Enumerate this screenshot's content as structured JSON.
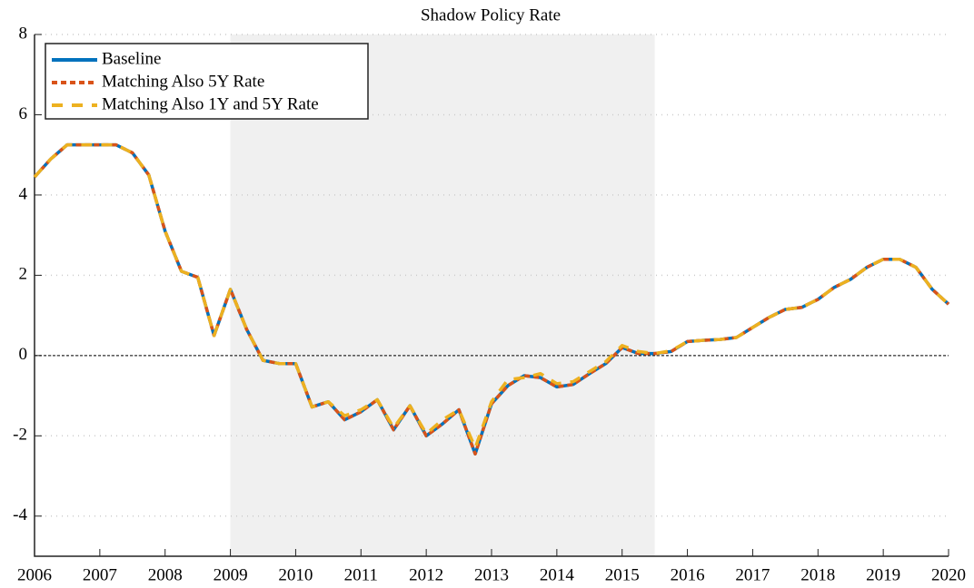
{
  "chart_data": {
    "type": "line",
    "title": "Shadow Policy Rate",
    "x": [
      2006,
      2006.25,
      2006.5,
      2006.75,
      2007,
      2007.25,
      2007.5,
      2007.75,
      2008,
      2008.25,
      2008.5,
      2008.75,
      2009,
      2009.25,
      2009.5,
      2009.75,
      2010,
      2010.25,
      2010.5,
      2010.75,
      2011,
      2011.25,
      2011.5,
      2011.75,
      2012,
      2012.25,
      2012.5,
      2012.75,
      2013,
      2013.25,
      2013.5,
      2013.75,
      2014,
      2014.25,
      2014.5,
      2014.75,
      2015,
      2015.25,
      2015.5,
      2015.75,
      2016,
      2016.25,
      2016.5,
      2016.75,
      2017,
      2017.25,
      2017.5,
      2017.75,
      2018,
      2018.25,
      2018.5,
      2018.75,
      2019,
      2019.25,
      2019.5,
      2019.75,
      2020
    ],
    "series": [
      {
        "name": "Baseline",
        "color": "#0072bd",
        "dash": "solid",
        "values": [
          4.45,
          4.9,
          5.25,
          5.25,
          5.25,
          5.25,
          5.05,
          4.5,
          3.1,
          2.1,
          1.95,
          0.5,
          1.65,
          0.65,
          -0.12,
          -0.2,
          -0.2,
          -1.28,
          -1.15,
          -1.6,
          -1.4,
          -1.1,
          -1.85,
          -1.25,
          -2.0,
          -1.7,
          -1.35,
          -2.45,
          -1.2,
          -0.75,
          -0.5,
          -0.55,
          -0.78,
          -0.72,
          -0.45,
          -0.2,
          0.2,
          0.05,
          0.05,
          0.1,
          0.35,
          0.38,
          0.4,
          0.45,
          0.7,
          0.95,
          1.15,
          1.2,
          1.4,
          1.7,
          1.9,
          2.2,
          2.4,
          2.4,
          2.2,
          1.65,
          1.28
        ]
      },
      {
        "name": "Matching Also 5Y Rate",
        "color": "#d95319",
        "dash": "short",
        "values": [
          4.45,
          4.9,
          5.25,
          5.25,
          5.25,
          5.25,
          5.05,
          4.5,
          3.1,
          2.1,
          1.95,
          0.5,
          1.65,
          0.65,
          -0.12,
          -0.2,
          -0.2,
          -1.28,
          -1.15,
          -1.6,
          -1.4,
          -1.1,
          -1.85,
          -1.25,
          -2.0,
          -1.7,
          -1.35,
          -2.45,
          -1.2,
          -0.75,
          -0.5,
          -0.55,
          -0.78,
          -0.72,
          -0.45,
          -0.2,
          0.2,
          0.05,
          0.05,
          0.1,
          0.35,
          0.38,
          0.4,
          0.45,
          0.7,
          0.95,
          1.15,
          1.2,
          1.4,
          1.7,
          1.9,
          2.2,
          2.4,
          2.4,
          2.2,
          1.65,
          1.28
        ]
      },
      {
        "name": "Matching Also 1Y and 5Y Rate",
        "color": "#edb120",
        "dash": "long",
        "values": [
          4.45,
          4.9,
          5.25,
          5.25,
          5.25,
          5.25,
          5.05,
          4.5,
          3.1,
          2.1,
          1.95,
          0.5,
          1.65,
          0.65,
          -0.12,
          -0.2,
          -0.2,
          -1.28,
          -1.15,
          -1.5,
          -1.35,
          -1.1,
          -1.8,
          -1.25,
          -1.95,
          -1.6,
          -1.35,
          -2.3,
          -1.15,
          -0.6,
          -0.55,
          -0.45,
          -0.7,
          -0.65,
          -0.4,
          -0.15,
          0.25,
          0.1,
          0.05,
          0.12,
          0.35,
          0.38,
          0.4,
          0.45,
          0.7,
          0.95,
          1.15,
          1.2,
          1.4,
          1.7,
          1.9,
          2.2,
          2.4,
          2.4,
          2.2,
          1.65,
          1.28
        ]
      }
    ],
    "xlim": [
      2006,
      2020
    ],
    "xticks": [
      2006,
      2007,
      2008,
      2009,
      2010,
      2011,
      2012,
      2013,
      2014,
      2015,
      2016,
      2017,
      2018,
      2019,
      2020
    ],
    "ylim": [
      -5,
      8
    ],
    "yticks": [
      -4,
      -2,
      0,
      2,
      4,
      6,
      8
    ],
    "shade": [
      2009,
      2015.5
    ],
    "hline": 0,
    "grid": true,
    "legend": "upper-left"
  }
}
